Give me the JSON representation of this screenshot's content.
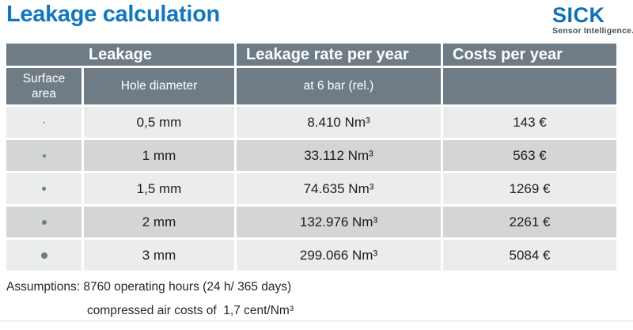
{
  "page": {
    "title": "Leakage calculation"
  },
  "logo": {
    "brand": "SICK",
    "tagline": "Sensor Intelligence."
  },
  "table": {
    "header": {
      "leakage": "Leakage",
      "rate": "Leakage rate per year",
      "costs": "Costs per year"
    },
    "subheader": {
      "surface_area": "Surface area",
      "hole_diameter": "Hole diameter",
      "condition": "at 6 bar (rel.)",
      "costs_empty": ""
    },
    "rows": [
      {
        "dot_size": 2,
        "hole_diameter": "0,5 mm",
        "rate": "8.410 Nm³",
        "cost": "143 €"
      },
      {
        "dot_size": 4,
        "hole_diameter": "1 mm",
        "rate": "33.112 Nm³",
        "cost": "563 €"
      },
      {
        "dot_size": 5,
        "hole_diameter": "1,5 mm",
        "rate": "74.635 Nm³",
        "cost": "1269 €"
      },
      {
        "dot_size": 6,
        "hole_diameter": "2 mm",
        "rate": "132.976 Nm³",
        "cost": "2261 €"
      },
      {
        "dot_size": 8,
        "hole_diameter": "3 mm",
        "rate": "299.066 Nm³",
        "cost": "5084 €"
      }
    ]
  },
  "assumptions": {
    "line1": "Assumptions: 8760 operating hours (24 h/ 365 days)",
    "line2": "compressed air costs of  1,7 cent/Nm³"
  },
  "colors": {
    "accent_blue": "#1377bd",
    "logo_blue": "#0e72b8",
    "tagline_gray": "#46505a",
    "header_gray": "#6f7c86",
    "row_light": "#ebedec",
    "row_dark": "#d3d6d5"
  }
}
